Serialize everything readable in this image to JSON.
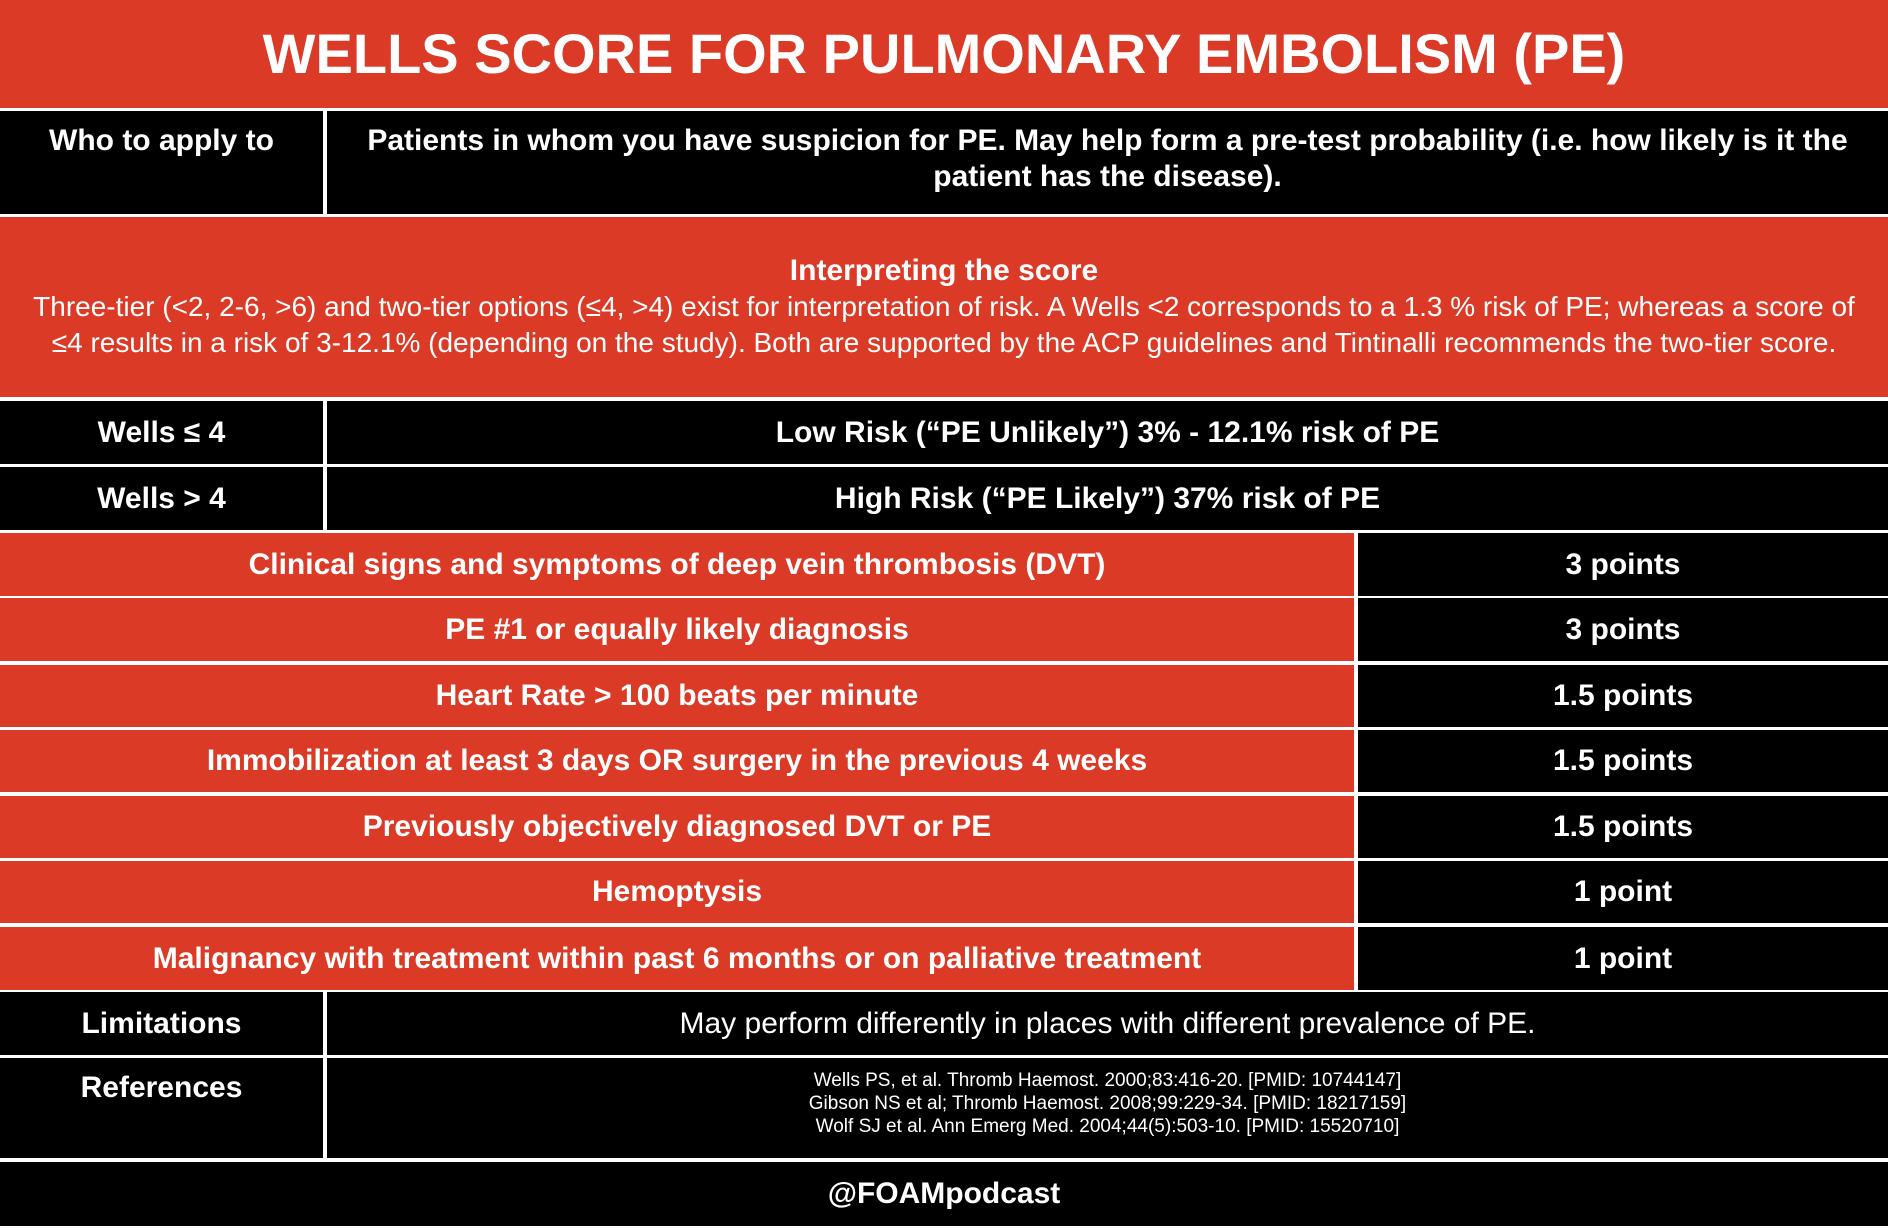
{
  "title": "WELLS SCORE FOR PULMONARY EMBOLISM (PE)",
  "who_to_apply": {
    "label": "Who to apply to",
    "text": "Patients in whom you have suspicion for PE. May help form a pre-test probability (i.e. how likely is it the patient has the disease)."
  },
  "interpretation": {
    "heading": "Interpreting the score",
    "text": "Three-tier (<2, 2-6, >6) and two-tier options (≤4, >4) exist for interpretation of risk. A Wells <2 corresponds to a 1.3 % risk of PE; whereas a score of ≤4 results in a risk of 3-12.1% (depending on the study). Both are supported by the ACP guidelines and Tintinalli recommends the two-tier score."
  },
  "risk_rows": [
    {
      "label": "Wells ≤ 4",
      "text": "Low Risk (“PE Unlikely”)  3% - 12.1% risk of PE"
    },
    {
      "label": "Wells > 4",
      "text": "High Risk (“PE Likely”) 37% risk of PE"
    }
  ],
  "criteria": [
    {
      "criterion": "Clinical signs and symptoms of deep vein thrombosis (DVT)",
      "points": "3 points"
    },
    {
      "criterion": "PE #1 or equally likely diagnosis",
      "points": "3 points"
    },
    {
      "criterion": "Heart Rate > 100 beats per minute",
      "points": "1.5 points"
    },
    {
      "criterion": "Immobilization at least 3 days OR surgery in the previous 4 weeks",
      "points": "1.5 points"
    },
    {
      "criterion": "Previously objectively diagnosed DVT or PE",
      "points": "1.5 points"
    },
    {
      "criterion": "Hemoptysis",
      "points": "1 point"
    },
    {
      "criterion": "Malignancy with treatment within past 6 months or on palliative treatment",
      "points": "1 point"
    }
  ],
  "limitations": {
    "label": "Limitations",
    "text": "May perform differently in places with different prevalence of PE."
  },
  "references": {
    "label": "References",
    "items": [
      "Wells PS, et al. Thromb Haemost. 2000;83:416-20. [PMID: 10744147]",
      "Gibson NS et al; Thromb Haemost. 2008;99:229-34. [PMID: 18217159]",
      "Wolf SJ et al. Ann Emerg Med. 2004;44(5):503-10. [PMID: 15520710]"
    ]
  },
  "footer": "@FOAMpodcast"
}
